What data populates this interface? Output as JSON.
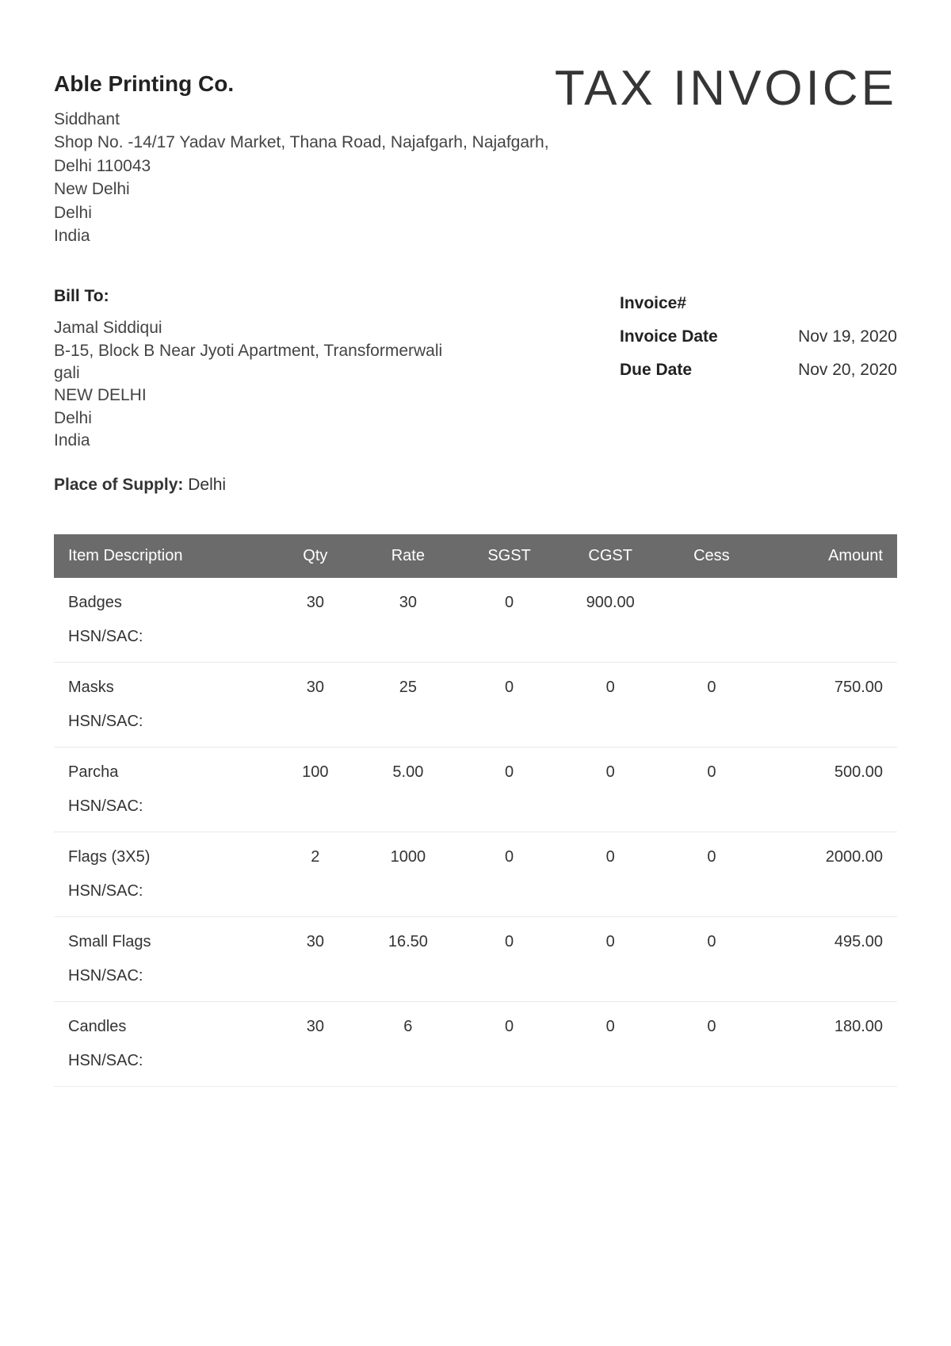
{
  "document_type": "TAX INVOICE",
  "sender": {
    "company": "Able Printing Co.",
    "lines": [
      "Siddhant",
      "Shop No. -14/17 Yadav Market, Thana Road, Najafgarh, Najafgarh, Delhi 110043",
      "New Delhi",
      "Delhi",
      "India"
    ]
  },
  "bill_to": {
    "label": "Bill To:",
    "lines": [
      "Jamal Siddiqui",
      "B-15, Block B Near Jyoti Apartment, Transformerwali gali",
      "NEW DELHI",
      "Delhi",
      "India"
    ]
  },
  "meta": {
    "invoice_number_label": "Invoice#",
    "invoice_number": "",
    "invoice_date_label": "Invoice Date",
    "invoice_date": "Nov 19, 2020",
    "due_date_label": "Due Date",
    "due_date": "Nov 20, 2020"
  },
  "place_of_supply_label": "Place of Supply:",
  "place_of_supply": "Delhi",
  "table": {
    "columns": [
      "Item Description",
      "Qty",
      "Rate",
      "SGST",
      "CGST",
      "Cess",
      "Amount"
    ],
    "hsn_label": "HSN/SAC:",
    "rows": [
      {
        "desc": "Badges",
        "qty": "30",
        "rate": "30",
        "sgst": "0",
        "cgst": "900.00",
        "cess": "",
        "amount": ""
      },
      {
        "desc": "Masks",
        "qty": "30",
        "rate": "25",
        "sgst": "0",
        "cgst": "0",
        "cess": "0",
        "amount": "750.00"
      },
      {
        "desc": "Parcha",
        "qty": "100",
        "rate": "5.00",
        "sgst": "0",
        "cgst": "0",
        "cess": "0",
        "amount": "500.00"
      },
      {
        "desc": "Flags (3X5)",
        "qty": "2",
        "rate": "1000",
        "sgst": "0",
        "cgst": "0",
        "cess": "0",
        "amount": "2000.00"
      },
      {
        "desc": "Small Flags",
        "qty": "30",
        "rate": "16.50",
        "sgst": "0",
        "cgst": "0",
        "cess": "0",
        "amount": "495.00"
      },
      {
        "desc": "Candles",
        "qty": "30",
        "rate": "6",
        "sgst": "0",
        "cgst": "0",
        "cess": "0",
        "amount": "180.00"
      }
    ]
  },
  "colors": {
    "header_bg": "#6b6b6b",
    "header_text": "#ffffff",
    "body_text": "#333333",
    "row_border": "#eaeaea",
    "page_bg": "#ffffff"
  }
}
